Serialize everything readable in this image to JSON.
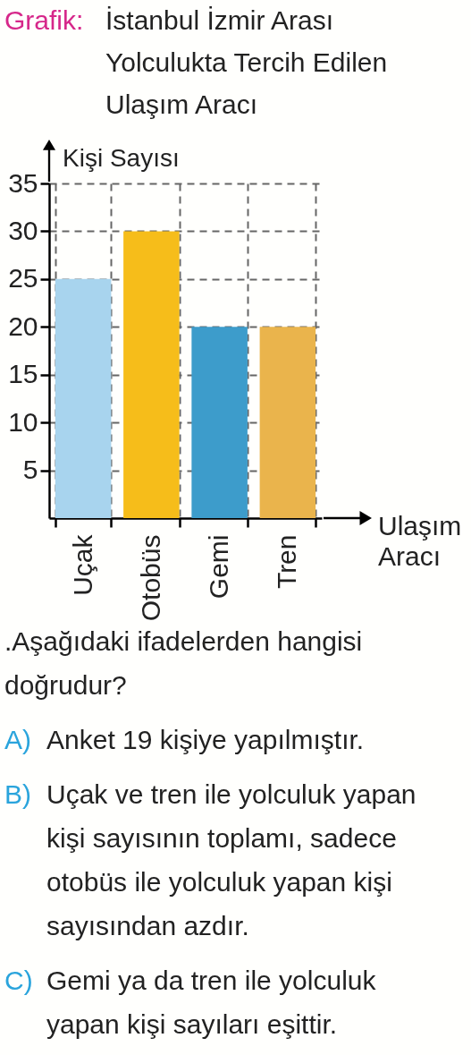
{
  "chart_data": {
    "type": "bar",
    "title": "Grafik: İstanbul İzmir Arası Yolculukta Tercih Edilen Ulaşım Aracı",
    "xlabel": "Ulaşım Aracı",
    "ylabel": "Kişi Sayısı",
    "categories": [
      "Uçak",
      "Otobüs",
      "Gemi",
      "Tren"
    ],
    "values": [
      25,
      30,
      20,
      20
    ],
    "colors": [
      "#a8d4ee",
      "#f6bd1a",
      "#3d9ccb",
      "#eab44c"
    ],
    "ylim": [
      0,
      35
    ],
    "yticks": [
      5,
      10,
      15,
      20,
      25,
      30,
      35
    ],
    "grid": true,
    "annotations": [
      ".Aşağıdaki ifadelerden hangisi doğrudur?",
      "A) Anket 19 kişiye yapılmıştır.",
      "B) Uçak ve tren ile yolculuk yapan kişi sayısının toplamı, sadece otobüs ile yolculuk yapan kişi sayısından azdır.",
      "C) Gemi ya da tren ile yolculuk yapan kişi sayıları eşittir."
    ]
  }
}
